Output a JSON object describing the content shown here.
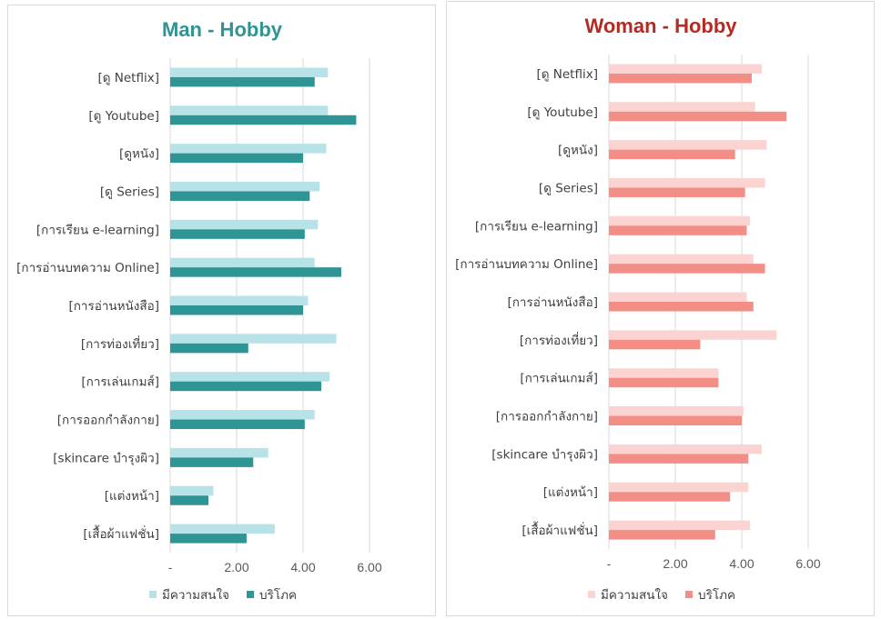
{
  "chart_data": [
    {
      "type": "bar",
      "orientation": "horizontal",
      "title": "Man - Hobby",
      "title_color": "#2e9494",
      "categories": [
        "[ดู Netflix]",
        "[ดู Youtube]",
        "[ดูหนัง]",
        "[ดู Series]",
        "[การเรียน e-learning]",
        "[การอ่านบทความ Online]",
        "[การอ่านหนังสือ]",
        "[การท่องเที่ยว]",
        "[การเล่นเกมส์]",
        "[การออกกำลังกาย]",
        "[skincare บำรุงผิว]",
        "[แต่งหน้า]",
        "[เสื้อผ้าแฟชั่น]"
      ],
      "series": [
        {
          "name": "มีความสนใจ",
          "color": "#b7e3e8",
          "values": [
            4.75,
            4.75,
            4.7,
            4.5,
            4.45,
            4.35,
            4.15,
            5.0,
            4.8,
            4.35,
            2.95,
            1.3,
            3.15
          ]
        },
        {
          "name": "บริโภค",
          "color": "#2e9494",
          "values": [
            4.35,
            5.6,
            4.0,
            4.2,
            4.05,
            5.15,
            4.0,
            2.35,
            4.55,
            4.05,
            2.5,
            1.15,
            2.3
          ]
        }
      ],
      "xlim": [
        0,
        7.5
      ],
      "xticks": [
        "-",
        "2.00",
        "4.00",
        "6.00"
      ],
      "grid": true,
      "legend": "bottom"
    },
    {
      "type": "bar",
      "orientation": "horizontal",
      "title": "Woman - Hobby",
      "title_color": "#b52a20",
      "categories": [
        "[ดู Netflix]",
        "[ดู Youtube]",
        "[ดูหนัง]",
        "[ดู Series]",
        "[การเรียน e-learning]",
        "[การอ่านบทความ Online]",
        "[การอ่านหนังสือ]",
        "[การท่องเที่ยว]",
        "[การเล่นเกมส์]",
        "[การออกกำลังกาย]",
        "[skincare บำรุงผิว]",
        "[แต่งหน้า]",
        "[เสื้อผ้าแฟชั่น]"
      ],
      "series": [
        {
          "name": "มีความสนใจ",
          "color": "#fbd3d0",
          "values": [
            4.6,
            4.4,
            4.75,
            4.7,
            4.25,
            4.35,
            4.15,
            5.05,
            3.3,
            4.05,
            4.6,
            4.2,
            4.25
          ]
        },
        {
          "name": "บริโภค",
          "color": "#f28e86",
          "values": [
            4.3,
            5.35,
            3.8,
            4.1,
            4.15,
            4.7,
            4.35,
            2.75,
            3.3,
            4.0,
            4.2,
            3.65,
            3.2
          ]
        }
      ],
      "xlim": [
        0,
        7.5
      ],
      "xticks": [
        "-",
        "2.00",
        "4.00",
        "6.00"
      ],
      "grid": true,
      "legend": "bottom"
    }
  ]
}
